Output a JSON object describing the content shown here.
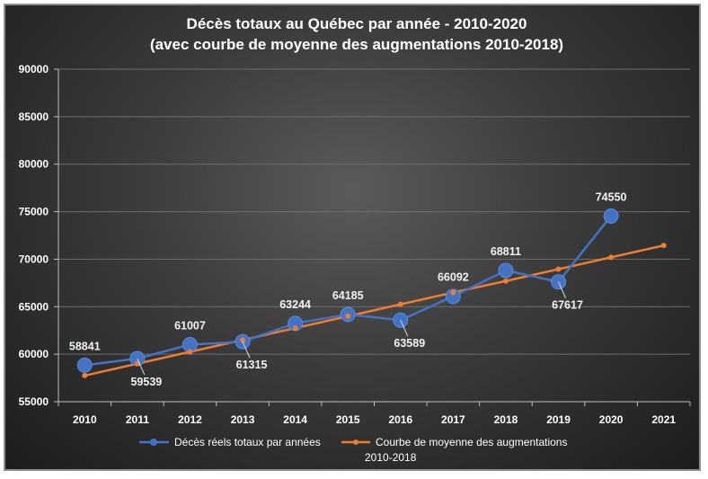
{
  "chart_data": {
    "type": "line",
    "title": "Décès totaux au Québec par année - 2010-2020",
    "subtitle": "(avec courbe de moyenne des augmentations 2010-2018)",
    "xlabel": "",
    "ylabel": "",
    "categories": [
      "2010",
      "2011",
      "2012",
      "2013",
      "2014",
      "2015",
      "2016",
      "2017",
      "2018",
      "2019",
      "2020",
      "2021"
    ],
    "y_ticks": [
      "55000",
      "60000",
      "65000",
      "70000",
      "75000",
      "80000",
      "85000",
      "90000"
    ],
    "ylim": [
      55000,
      90000
    ],
    "grid": true,
    "legend_position": "bottom",
    "series": [
      {
        "name": "Décès réels totaux par années",
        "color": "#4472c4",
        "values": [
          58841,
          59539,
          61007,
          61315,
          63244,
          64185,
          63589,
          66092,
          68811,
          67617,
          74550,
          null
        ],
        "labels": [
          "58841",
          "59539",
          "61007",
          "61315",
          "63244",
          "64185",
          "63589",
          "66092",
          "68811",
          "67617",
          "74550",
          ""
        ]
      },
      {
        "name": "Courbe de moyenne des augmentations 2010-2018",
        "legend_lines": [
          "Courbe de moyenne des augmentations",
          "2010-2018"
        ],
        "color": "#ed7d31",
        "values": [
          57750,
          59000,
          60250,
          61500,
          62750,
          64000,
          65250,
          66500,
          67700,
          68950,
          70200,
          71450
        ]
      }
    ]
  }
}
